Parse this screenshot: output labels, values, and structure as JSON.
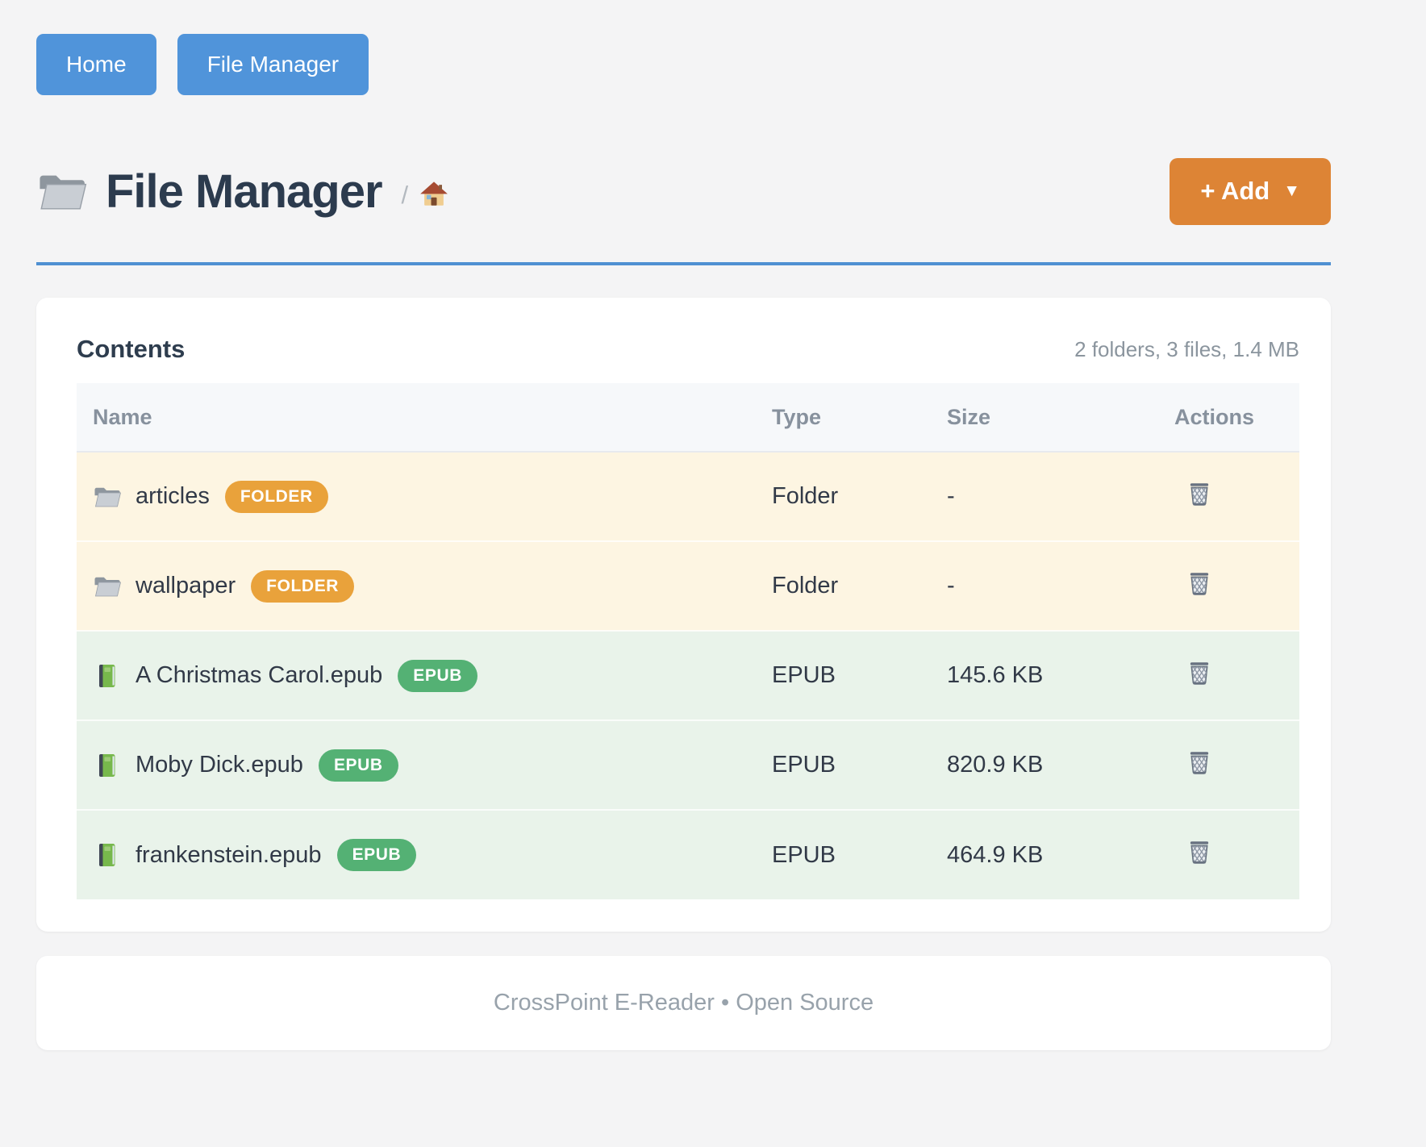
{
  "nav": {
    "buttons": [
      {
        "label": "Home"
      },
      {
        "label": "File Manager"
      }
    ]
  },
  "header": {
    "icon": "folder-icon",
    "title": "File Manager",
    "breadcrumb_separator": "/",
    "breadcrumb_home_icon": "home-icon",
    "add_button": {
      "label": "+ Add",
      "caret": "▼"
    }
  },
  "card": {
    "title": "Contents",
    "summary": "2 folders, 3 files, 1.4 MB",
    "table": {
      "columns": [
        "Name",
        "Type",
        "Size",
        "Actions"
      ],
      "rows": [
        {
          "kind": "folder",
          "icon": "folder-icon",
          "name": "articles",
          "badge": "FOLDER",
          "type": "Folder",
          "size": "-",
          "action_icon": "trash-icon"
        },
        {
          "kind": "folder",
          "icon": "folder-icon",
          "name": "wallpaper",
          "badge": "FOLDER",
          "type": "Folder",
          "size": "-",
          "action_icon": "trash-icon"
        },
        {
          "kind": "epub",
          "icon": "book-icon",
          "name": "A Christmas Carol.epub",
          "badge": "EPUB",
          "type": "EPUB",
          "size": "145.6 KB",
          "action_icon": "trash-icon"
        },
        {
          "kind": "epub",
          "icon": "book-icon",
          "name": "Moby Dick.epub",
          "badge": "EPUB",
          "type": "EPUB",
          "size": "820.9 KB",
          "action_icon": "trash-icon"
        },
        {
          "kind": "epub",
          "icon": "book-icon",
          "name": "frankenstein.epub",
          "badge": "EPUB",
          "type": "EPUB",
          "size": "464.9 KB",
          "action_icon": "trash-icon"
        }
      ]
    }
  },
  "footer": {
    "text": "CrossPoint E-Reader • Open Source"
  },
  "colors": {
    "page_bg": "#f4f4f5",
    "nav_button_bg": "#5094da",
    "accent_rule": "#4f90d2",
    "add_button_bg": "#dd8435",
    "folder_badge": "#e9a23b",
    "epub_badge": "#54b174",
    "folder_row_bg": "#fdf5e2",
    "epub_row_bg": "#e9f3ea",
    "header_row_bg": "#f6f8fa"
  }
}
